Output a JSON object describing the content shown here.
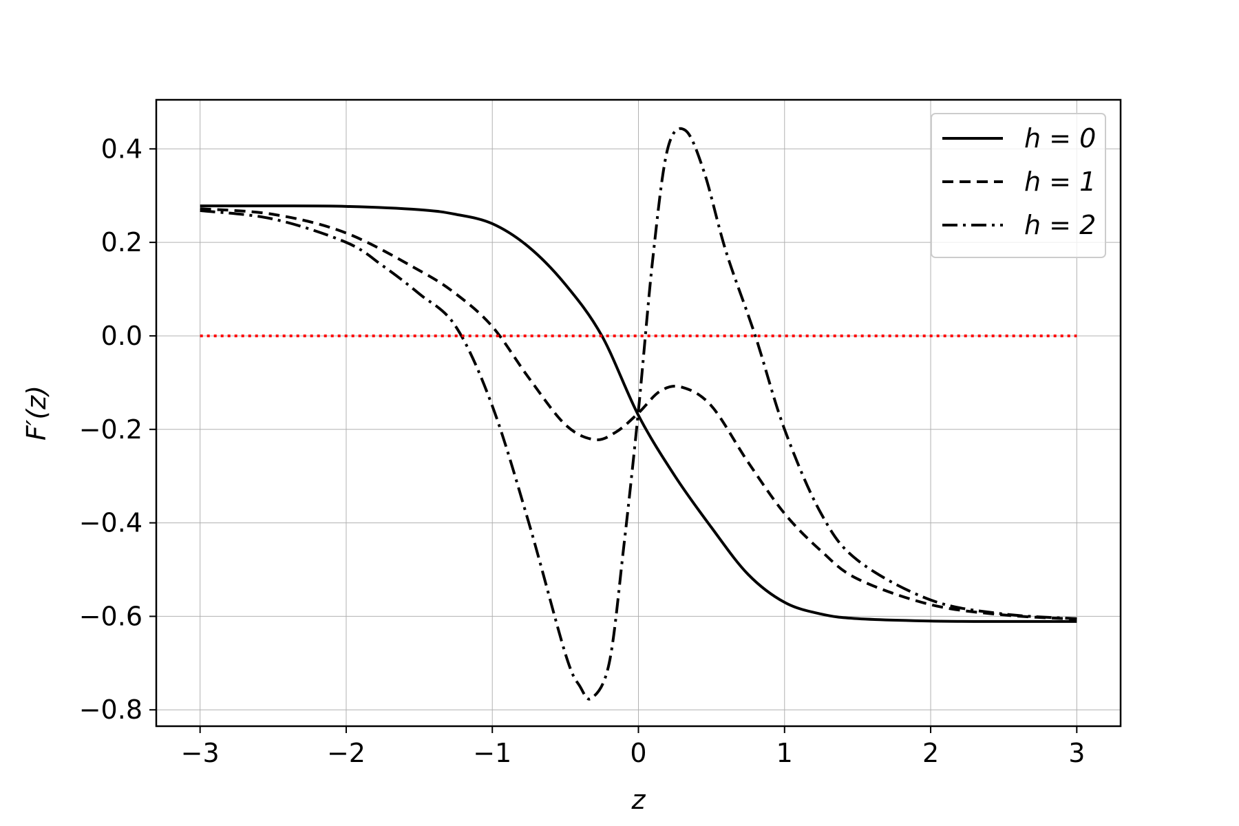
{
  "chart_data": {
    "type": "line",
    "xlabel": "z",
    "ylabel": "F′(z)",
    "xlim": [
      -3.3,
      3.3
    ],
    "ylim": [
      -0.835,
      0.505
    ],
    "xticks": [
      -3,
      -2,
      -1,
      0,
      1,
      2,
      3
    ],
    "xtick_labels": [
      "−3",
      "−2",
      "−1",
      "0",
      "1",
      "2",
      "3"
    ],
    "yticks": [
      -0.8,
      -0.6,
      -0.4,
      -0.2,
      0.0,
      0.2,
      0.4
    ],
    "ytick_labels": [
      "−0.8",
      "−0.6",
      "−0.4",
      "−0.2",
      "0.0",
      "0.2",
      "0.4"
    ],
    "grid": true,
    "legend_position": "top-right",
    "series": [
      {
        "name": "h = 0",
        "style": "solid",
        "color": "#000000",
        "x": [
          -3,
          -2.5,
          -2,
          -1.5,
          -1.25,
          -1,
          -0.75,
          -0.5,
          -0.25,
          0,
          0.25,
          0.5,
          0.75,
          1,
          1.25,
          1.5,
          2,
          2.5,
          3
        ],
        "y": [
          0.278,
          0.278,
          0.277,
          0.27,
          0.26,
          0.24,
          0.19,
          0.11,
          0.0,
          -0.17,
          -0.3,
          -0.41,
          -0.51,
          -0.57,
          -0.595,
          -0.605,
          -0.61,
          -0.611,
          -0.611
        ]
      },
      {
        "name": "h = 1",
        "style": "dashed",
        "color": "#000000",
        "x": [
          -3,
          -2.5,
          -2,
          -1.5,
          -1.25,
          -1,
          -0.75,
          -0.5,
          -0.3,
          -0.15,
          0,
          0.15,
          0.3,
          0.5,
          0.75,
          1,
          1.25,
          1.5,
          2,
          2.5,
          3
        ],
        "y": [
          0.272,
          0.26,
          0.22,
          0.14,
          0.09,
          0.02,
          -0.09,
          -0.19,
          -0.222,
          -0.205,
          -0.165,
          -0.118,
          -0.11,
          -0.15,
          -0.27,
          -0.38,
          -0.46,
          -0.52,
          -0.575,
          -0.597,
          -0.606
        ]
      },
      {
        "name": "h = 2",
        "style": "dashdot",
        "color": "#000000",
        "x": [
          -3,
          -2.5,
          -2,
          -1.75,
          -1.5,
          -1.25,
          -1,
          -0.75,
          -0.5,
          -0.4,
          -0.32,
          -0.2,
          -0.1,
          0,
          0.1,
          0.2,
          0.32,
          0.45,
          0.6,
          0.8,
          1,
          1.25,
          1.5,
          2,
          2.5,
          3
        ],
        "y": [
          0.268,
          0.25,
          0.2,
          0.15,
          0.09,
          0.02,
          -0.15,
          -0.4,
          -0.68,
          -0.75,
          -0.775,
          -0.7,
          -0.45,
          -0.16,
          0.17,
          0.4,
          0.44,
          0.35,
          0.18,
          0.0,
          -0.2,
          -0.38,
          -0.48,
          -0.565,
          -0.595,
          -0.605
        ]
      },
      {
        "name": "",
        "style": "dotted",
        "color": "#ff0000",
        "x": [
          -3,
          3
        ],
        "y": [
          0,
          0
        ]
      }
    ]
  }
}
